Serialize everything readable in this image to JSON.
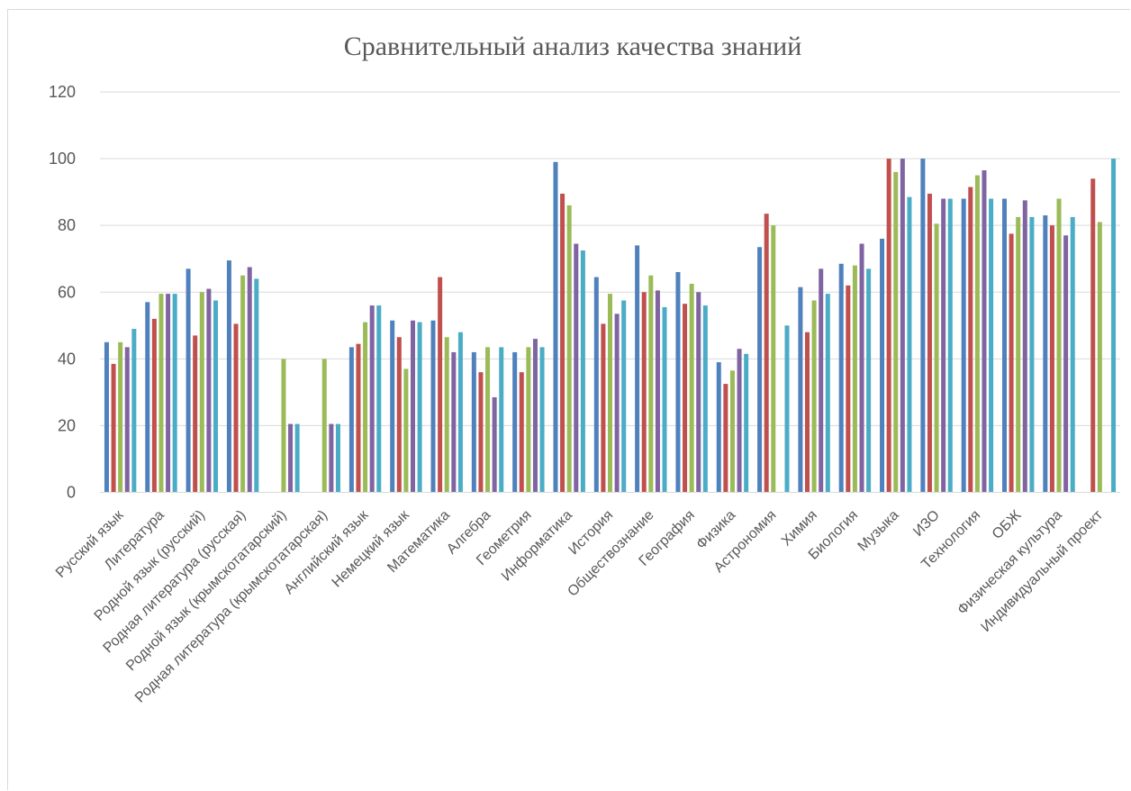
{
  "chart_data": {
    "type": "bar",
    "title": "Сравнительный анализ качества знаний",
    "xlabel": "",
    "ylabel": "",
    "ylim": [
      0,
      120
    ],
    "yticks": [
      "0",
      "20",
      "40",
      "60",
      "80",
      "100",
      "120"
    ],
    "grid": true,
    "legend": "none",
    "categories": [
      "Русский язык",
      "Литература",
      "Родной язык (русский)",
      "Родная литература (русская)",
      "Родной язык (крымскотатарский)",
      "Родная литература (крымскотатарская)",
      "Английский язык",
      "Немецкий язык",
      "Математика",
      "Алгебра",
      "Геометрия",
      "Информатика",
      "История",
      "Обществознание",
      "География",
      "Физика",
      "Астрономия",
      "Химия",
      "Биология",
      "Музыка",
      "ИЗО",
      "Технология",
      "ОБЖ",
      "Физическая культура",
      "Индивидуальный проект"
    ],
    "series": [
      {
        "color": "#4f81bd",
        "values": [
          45,
          57,
          67,
          69.5,
          null,
          null,
          43.5,
          51.5,
          51.5,
          42,
          42,
          99,
          64.5,
          74,
          66,
          39,
          73.5,
          61.5,
          68.5,
          76,
          100,
          88,
          88,
          83,
          null
        ]
      },
      {
        "color": "#c0504d",
        "values": [
          38.5,
          52,
          47,
          50.5,
          null,
          null,
          44.5,
          46.5,
          64.5,
          36,
          36,
          89.5,
          50.5,
          60,
          56.5,
          32.5,
          83.5,
          48,
          62,
          100,
          89.5,
          91.5,
          77.5,
          80,
          94
        ]
      },
      {
        "color": "#9bbb59",
        "values": [
          45,
          59.5,
          60,
          65,
          40,
          40,
          51,
          37,
          46.5,
          43.5,
          43.5,
          86,
          59.5,
          65,
          62.5,
          36.5,
          80,
          57.5,
          68,
          96,
          80.5,
          95,
          82.5,
          88,
          81
        ]
      },
      {
        "color": "#8064a2",
        "values": [
          43.5,
          59.5,
          61,
          67.5,
          20.5,
          20.5,
          56,
          51.5,
          42,
          28.5,
          46,
          74.5,
          53.5,
          60.5,
          60,
          43,
          null,
          67,
          74.5,
          100,
          88,
          96.5,
          87.5,
          77,
          null
        ]
      },
      {
        "color": "#4bacc6",
        "values": [
          49,
          59.5,
          57.5,
          64,
          20.5,
          20.5,
          56,
          51,
          48,
          43.5,
          43.5,
          72.5,
          57.5,
          55.5,
          56,
          41.5,
          50,
          59.5,
          67,
          88.5,
          88,
          88,
          82.5,
          82.5,
          100
        ]
      }
    ]
  }
}
